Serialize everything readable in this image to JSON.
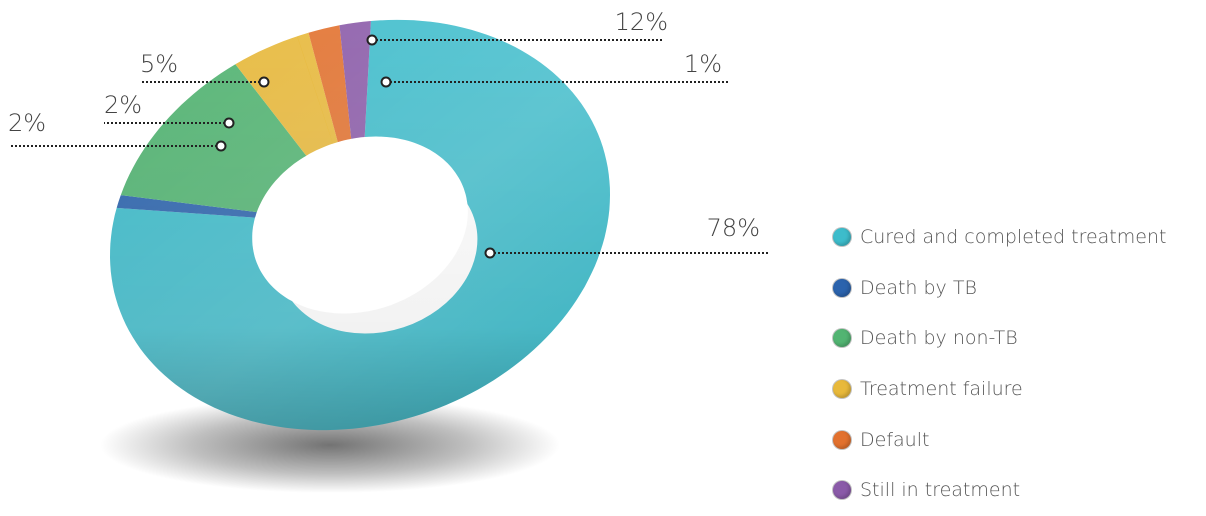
{
  "chart_data": {
    "type": "pie",
    "variant": "donut-3d",
    "title": "",
    "legend_position": "right",
    "slices": [
      {
        "name": "Cured and completed treatment",
        "value": 78,
        "label": "78%",
        "color": "#3dbccb"
      },
      {
        "name": "Death by TB",
        "value": 1,
        "label": "1%",
        "color": "#2b63ad"
      },
      {
        "name": "Death by non-TB",
        "value": 12,
        "label": "12%",
        "color": "#52b472"
      },
      {
        "name": "Treatment failure",
        "value": 5,
        "label": "5%",
        "color": "#e8b93b"
      },
      {
        "name": "Default",
        "value": 2,
        "label": "2%",
        "color": "#e2712e"
      },
      {
        "name": "Still in treatment",
        "value": 2,
        "label": "2%",
        "color": "#8a5aa8"
      }
    ]
  }
}
